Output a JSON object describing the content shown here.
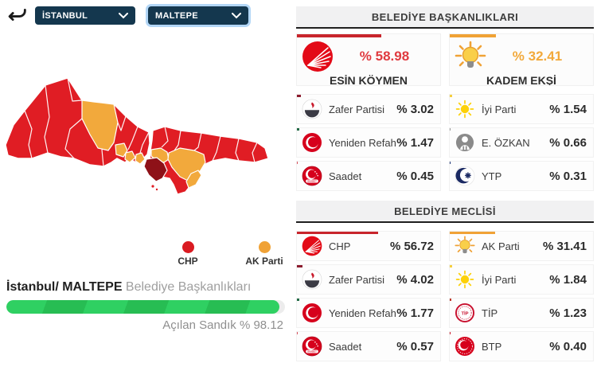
{
  "toolbar": {
    "province": "İSTANBUL",
    "district": "MALTEPE"
  },
  "map": {
    "legend": [
      {
        "label": "CHP",
        "color": "#da1b22"
      },
      {
        "label": "AK Parti",
        "color": "#f0a236"
      }
    ],
    "colors": {
      "chp": "#e01d24",
      "akp": "#f2a93c",
      "selected": "#8e1118"
    }
  },
  "footer": {
    "location_bold": "İstanbul/ MALTEPE",
    "location_rest": " Belediye Başkanlıkları",
    "ballot_text": "Açılan Sandık % 98.12",
    "ballot_percent": 98.12
  },
  "mayoral": {
    "title": "BELEDİYE BAŞKANLIKLARI",
    "candidates": [
      {
        "party": "CHP",
        "name": "ESİN KÖYMEN",
        "value": "% 58.98",
        "percent": 58.98,
        "color": "#c8252c",
        "text_color": "#e03a3f",
        "icon": "chp-logo"
      },
      {
        "party": "AK Parti",
        "name": "KADEM EKŞİ",
        "value": "% 32.41",
        "percent": 32.41,
        "color": "#f0a236",
        "text_color": "#f2a93b",
        "icon": "akparti-logo"
      }
    ],
    "left_rows": [
      {
        "party": "Zafer Partisi",
        "value": "% 3.02",
        "percent": 3.02,
        "color": "#8c1d2f",
        "icon": "zafer-logo"
      },
      {
        "party": "Yeniden Refah",
        "value": "% 1.47",
        "percent": 1.47,
        "color": "#246b47",
        "icon": "yeniden-refah-logo"
      },
      {
        "party": "Saadet",
        "value": "% 0.45",
        "percent": 0.45,
        "color": "#d85560",
        "icon": "saadet-logo"
      }
    ],
    "right_rows": [
      {
        "party": "İyi Parti",
        "value": "% 1.54",
        "percent": 1.54,
        "color": "#f6cf3e",
        "icon": "iyi-parti-logo"
      },
      {
        "party": "E. ÖZKAN",
        "value": "% 0.66",
        "percent": 0.66,
        "color": "#9a9a9a",
        "icon": "independent-logo"
      },
      {
        "party": "YTP",
        "value": "% 0.31",
        "percent": 0.31,
        "color": "#223a7a",
        "icon": "ytp-logo"
      }
    ]
  },
  "council": {
    "title": "BELEDİYE MECLİSİ",
    "left_rows": [
      {
        "party": "CHP",
        "value": "% 56.72",
        "percent": 56.72,
        "color": "#c8252c",
        "icon": "chp-logo"
      },
      {
        "party": "Zafer Partisi",
        "value": "% 4.02",
        "percent": 4.02,
        "color": "#8c1d2f",
        "icon": "zafer-logo"
      },
      {
        "party": "Yeniden Refah",
        "value": "% 1.77",
        "percent": 1.77,
        "color": "#246b47",
        "icon": "yeniden-refah-logo"
      },
      {
        "party": "Saadet",
        "value": "% 0.57",
        "percent": 0.57,
        "color": "#d85560",
        "icon": "saadet-logo"
      }
    ],
    "right_rows": [
      {
        "party": "AK Parti",
        "value": "% 31.41",
        "percent": 31.41,
        "color": "#f0a236",
        "icon": "akparti-logo"
      },
      {
        "party": "İyi Parti",
        "value": "% 1.84",
        "percent": 1.84,
        "color": "#f6cf3e",
        "icon": "iyi-parti-logo"
      },
      {
        "party": "TİP",
        "value": "% 1.23",
        "percent": 1.23,
        "color": "#c0392b",
        "icon": "tip-logo"
      },
      {
        "party": "BTP",
        "value": "% 0.40",
        "percent": 0.4,
        "color": "#cc1f2d",
        "icon": "btp-logo"
      }
    ]
  }
}
